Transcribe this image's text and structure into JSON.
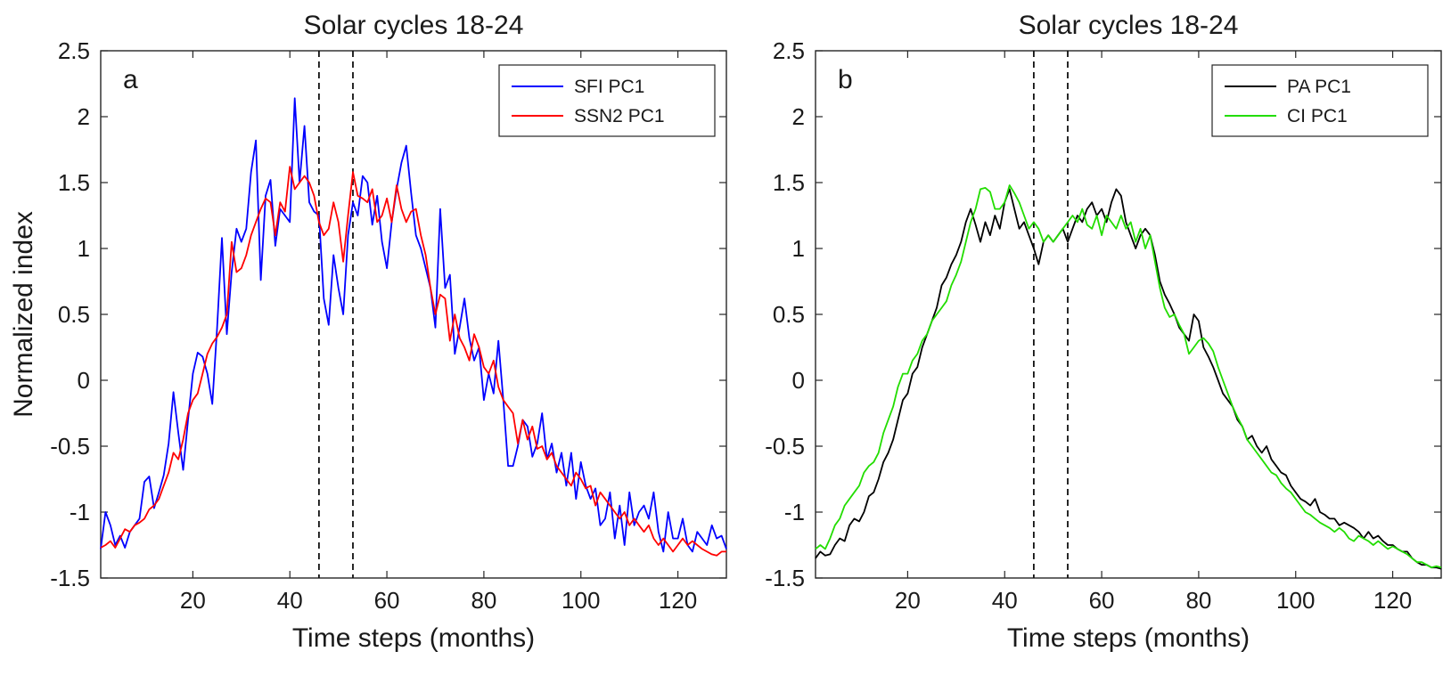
{
  "chart_data": [
    {
      "type": "line",
      "panel_label": "a",
      "title": "Solar cycles 18-24",
      "xlabel": "Time steps (months)",
      "ylabel": "Normalized index",
      "xlim": [
        1,
        130
      ],
      "ylim": [
        -1.5,
        2.5
      ],
      "xticks": [
        "20",
        "40",
        "60",
        "80",
        "100",
        "120"
      ],
      "yticks": [
        "-1.5",
        "-1",
        "-0.5",
        "0",
        "0.5",
        "1",
        "1.5",
        "2",
        "2.5"
      ],
      "vlines": [
        46,
        53
      ],
      "legend_position": "top-right",
      "series": [
        {
          "name": "SFI PC1",
          "color": "#0000ff",
          "x": [
            1,
            2,
            3,
            4,
            5,
            6,
            7,
            8,
            9,
            10,
            11,
            12,
            13,
            14,
            15,
            16,
            17,
            18,
            19,
            20,
            21,
            22,
            23,
            24,
            25,
            26,
            27,
            28,
            29,
            30,
            31,
            32,
            33,
            34,
            35,
            36,
            37,
            38,
            39,
            40,
            41,
            42,
            43,
            44,
            45,
            46,
            47,
            48,
            49,
            50,
            51,
            52,
            53,
            54,
            55,
            56,
            57,
            58,
            59,
            60,
            61,
            62,
            63,
            64,
            65,
            66,
            67,
            68,
            69,
            70,
            71,
            72,
            73,
            74,
            75,
            76,
            77,
            78,
            79,
            80,
            81,
            82,
            83,
            84,
            85,
            86,
            87,
            88,
            89,
            90,
            91,
            92,
            93,
            94,
            95,
            96,
            97,
            98,
            99,
            100,
            101,
            102,
            103,
            104,
            105,
            106,
            107,
            108,
            109,
            110,
            111,
            112,
            113,
            114,
            115,
            116,
            117,
            118,
            119,
            120,
            121,
            122,
            123,
            124,
            125,
            126,
            127,
            128,
            129,
            130
          ],
          "values": [
            -1.28,
            -1.0,
            -1.1,
            -1.25,
            -1.18,
            -1.27,
            -1.15,
            -1.1,
            -1.05,
            -0.77,
            -0.73,
            -0.97,
            -0.85,
            -0.72,
            -0.48,
            -0.09,
            -0.4,
            -0.68,
            -0.3,
            0.05,
            0.21,
            0.18,
            0.05,
            -0.18,
            0.4,
            1.08,
            0.35,
            0.82,
            1.15,
            1.05,
            1.15,
            1.58,
            1.82,
            0.76,
            1.4,
            1.52,
            1.02,
            1.3,
            1.25,
            1.2,
            2.14,
            1.5,
            1.93,
            1.35,
            1.28,
            1.25,
            0.62,
            0.42,
            0.95,
            0.7,
            0.5,
            1.1,
            1.35,
            1.25,
            1.55,
            1.5,
            1.18,
            1.4,
            1.05,
            0.85,
            1.2,
            1.45,
            1.65,
            1.78,
            1.42,
            1.1,
            1.0,
            0.85,
            0.7,
            0.4,
            1.3,
            0.7,
            0.8,
            0.2,
            0.4,
            0.62,
            0.32,
            0.15,
            0.25,
            -0.15,
            0.05,
            -0.1,
            0.3,
            -0.15,
            -0.65,
            -0.65,
            -0.5,
            -0.3,
            -0.35,
            -0.58,
            -0.48,
            -0.25,
            -0.6,
            -0.48,
            -0.7,
            -0.55,
            -0.8,
            -0.55,
            -0.9,
            -0.62,
            -0.8,
            -0.9,
            -0.82,
            -1.1,
            -1.05,
            -0.85,
            -1.2,
            -0.95,
            -1.25,
            -0.85,
            -1.1,
            -1.0,
            -0.95,
            -1.05,
            -0.85,
            -1.15,
            -1.3,
            -1.0,
            -1.2,
            -1.2,
            -1.05,
            -1.25,
            -1.3,
            -1.15,
            -1.2,
            -1.25,
            -1.1,
            -1.2,
            -1.18,
            -1.28
          ]
        },
        {
          "name": "SSN2 PC1",
          "color": "#ff0000",
          "x": [
            1,
            2,
            3,
            4,
            5,
            6,
            7,
            8,
            9,
            10,
            11,
            12,
            13,
            14,
            15,
            16,
            17,
            18,
            19,
            20,
            21,
            22,
            23,
            24,
            25,
            26,
            27,
            28,
            29,
            30,
            31,
            32,
            33,
            34,
            35,
            36,
            37,
            38,
            39,
            40,
            41,
            42,
            43,
            44,
            45,
            46,
            47,
            48,
            49,
            50,
            51,
            52,
            53,
            54,
            55,
            56,
            57,
            58,
            59,
            60,
            61,
            62,
            63,
            64,
            65,
            66,
            67,
            68,
            69,
            70,
            71,
            72,
            73,
            74,
            75,
            76,
            77,
            78,
            79,
            80,
            81,
            82,
            83,
            84,
            85,
            86,
            87,
            88,
            89,
            90,
            91,
            92,
            93,
            94,
            95,
            96,
            97,
            98,
            99,
            100,
            101,
            102,
            103,
            104,
            105,
            106,
            107,
            108,
            109,
            110,
            111,
            112,
            113,
            114,
            115,
            116,
            117,
            118,
            119,
            120,
            121,
            122,
            123,
            124,
            125,
            126,
            127,
            128,
            129,
            130
          ],
          "values": [
            -1.27,
            -1.25,
            -1.22,
            -1.27,
            -1.2,
            -1.13,
            -1.15,
            -1.1,
            -1.08,
            -1.05,
            -0.98,
            -0.95,
            -0.9,
            -0.8,
            -0.7,
            -0.55,
            -0.6,
            -0.45,
            -0.25,
            -0.15,
            -0.1,
            0.05,
            0.2,
            0.28,
            0.33,
            0.4,
            0.5,
            1.05,
            0.82,
            0.85,
            0.95,
            1.1,
            1.2,
            1.3,
            1.38,
            1.35,
            1.1,
            1.35,
            1.28,
            1.62,
            1.45,
            1.5,
            1.55,
            1.5,
            1.4,
            1.2,
            1.1,
            1.15,
            1.35,
            1.2,
            0.9,
            1.25,
            1.58,
            1.4,
            1.38,
            1.35,
            1.45,
            1.2,
            1.25,
            1.38,
            1.2,
            1.48,
            1.3,
            1.2,
            1.28,
            1.3,
            1.1,
            0.95,
            0.7,
            0.5,
            0.65,
            0.62,
            0.3,
            0.5,
            0.32,
            0.25,
            0.15,
            0.35,
            0.25,
            0.1,
            0.05,
            0.15,
            -0.05,
            -0.15,
            -0.2,
            -0.25,
            -0.48,
            -0.3,
            -0.45,
            -0.35,
            -0.52,
            -0.5,
            -0.6,
            -0.55,
            -0.65,
            -0.7,
            -0.75,
            -0.8,
            -0.7,
            -0.75,
            -0.82,
            -0.8,
            -0.95,
            -0.85,
            -0.9,
            -0.95,
            -1.0,
            -1.05,
            -1.0,
            -1.1,
            -1.05,
            -1.1,
            -1.15,
            -1.1,
            -1.2,
            -1.25,
            -1.2,
            -1.25,
            -1.3,
            -1.25,
            -1.2,
            -1.25,
            -1.22,
            -1.25,
            -1.28,
            -1.3,
            -1.32,
            -1.33,
            -1.3,
            -1.3
          ]
        }
      ]
    },
    {
      "type": "line",
      "panel_label": "b",
      "title": "Solar cycles 18-24",
      "xlabel": "Time steps (months)",
      "ylabel": "",
      "xlim": [
        1,
        130
      ],
      "ylim": [
        -1.5,
        2.5
      ],
      "xticks": [
        "20",
        "40",
        "60",
        "80",
        "100",
        "120"
      ],
      "yticks": [
        "-1.5",
        "-1",
        "-0.5",
        "0",
        "0.5",
        "1",
        "1.5",
        "2",
        "2.5"
      ],
      "vlines": [
        46,
        53
      ],
      "legend_position": "top-right",
      "series": [
        {
          "name": "PA PC1",
          "color": "#000000",
          "x": [
            1,
            2,
            3,
            4,
            5,
            6,
            7,
            8,
            9,
            10,
            11,
            12,
            13,
            14,
            15,
            16,
            17,
            18,
            19,
            20,
            21,
            22,
            23,
            24,
            25,
            26,
            27,
            28,
            29,
            30,
            31,
            32,
            33,
            34,
            35,
            36,
            37,
            38,
            39,
            40,
            41,
            42,
            43,
            44,
            45,
            46,
            47,
            48,
            49,
            50,
            51,
            52,
            53,
            54,
            55,
            56,
            57,
            58,
            59,
            60,
            61,
            62,
            63,
            64,
            65,
            66,
            67,
            68,
            69,
            70,
            71,
            72,
            73,
            74,
            75,
            76,
            77,
            78,
            79,
            80,
            81,
            82,
            83,
            84,
            85,
            86,
            87,
            88,
            89,
            90,
            91,
            92,
            93,
            94,
            95,
            96,
            97,
            98,
            99,
            100,
            101,
            102,
            103,
            104,
            105,
            106,
            107,
            108,
            109,
            110,
            111,
            112,
            113,
            114,
            115,
            116,
            117,
            118,
            119,
            120,
            121,
            122,
            123,
            124,
            125,
            126,
            127,
            128,
            129,
            130
          ],
          "values": [
            -1.35,
            -1.3,
            -1.33,
            -1.32,
            -1.25,
            -1.2,
            -1.22,
            -1.1,
            -1.05,
            -1.07,
            -1.0,
            -0.88,
            -0.85,
            -0.75,
            -0.62,
            -0.55,
            -0.45,
            -0.3,
            -0.15,
            -0.1,
            0.05,
            0.1,
            0.25,
            0.35,
            0.45,
            0.55,
            0.72,
            0.78,
            0.88,
            0.95,
            1.05,
            1.2,
            1.3,
            1.18,
            1.05,
            1.2,
            1.1,
            1.25,
            1.15,
            1.35,
            1.45,
            1.3,
            1.15,
            1.2,
            1.1,
            1.0,
            0.88,
            1.05,
            1.1,
            1.05,
            1.1,
            1.15,
            1.05,
            1.15,
            1.25,
            1.2,
            1.3,
            1.35,
            1.25,
            1.3,
            1.2,
            1.35,
            1.45,
            1.4,
            1.2,
            1.1,
            1.0,
            1.1,
            1.15,
            1.1,
            0.95,
            0.75,
            0.65,
            0.58,
            0.5,
            0.4,
            0.35,
            0.3,
            0.5,
            0.45,
            0.25,
            0.18,
            0.1,
            0.0,
            -0.1,
            -0.15,
            -0.2,
            -0.3,
            -0.35,
            -0.45,
            -0.42,
            -0.5,
            -0.55,
            -0.5,
            -0.6,
            -0.65,
            -0.7,
            -0.72,
            -0.8,
            -0.85,
            -0.9,
            -0.92,
            -0.95,
            -0.9,
            -1.0,
            -1.02,
            -1.05,
            -1.05,
            -1.1,
            -1.08,
            -1.1,
            -1.12,
            -1.15,
            -1.2,
            -1.15,
            -1.2,
            -1.18,
            -1.22,
            -1.25,
            -1.25,
            -1.28,
            -1.3,
            -1.3,
            -1.35,
            -1.38,
            -1.4,
            -1.4,
            -1.42,
            -1.42,
            -1.43
          ]
        },
        {
          "name": "CI PC1",
          "color": "#22dd00",
          "x": [
            1,
            2,
            3,
            4,
            5,
            6,
            7,
            8,
            9,
            10,
            11,
            12,
            13,
            14,
            15,
            16,
            17,
            18,
            19,
            20,
            21,
            22,
            23,
            24,
            25,
            26,
            27,
            28,
            29,
            30,
            31,
            32,
            33,
            34,
            35,
            36,
            37,
            38,
            39,
            40,
            41,
            42,
            43,
            44,
            45,
            46,
            47,
            48,
            49,
            50,
            51,
            52,
            53,
            54,
            55,
            56,
            57,
            58,
            59,
            60,
            61,
            62,
            63,
            64,
            65,
            66,
            67,
            68,
            69,
            70,
            71,
            72,
            73,
            74,
            75,
            76,
            77,
            78,
            79,
            80,
            81,
            82,
            83,
            84,
            85,
            86,
            87,
            88,
            89,
            90,
            91,
            92,
            93,
            94,
            95,
            96,
            97,
            98,
            99,
            100,
            101,
            102,
            103,
            104,
            105,
            106,
            107,
            108,
            109,
            110,
            111,
            112,
            113,
            114,
            115,
            116,
            117,
            118,
            119,
            120,
            121,
            122,
            123,
            124,
            125,
            126,
            127,
            128,
            129,
            130
          ],
          "values": [
            -1.28,
            -1.25,
            -1.28,
            -1.2,
            -1.1,
            -1.05,
            -0.95,
            -0.9,
            -0.85,
            -0.8,
            -0.7,
            -0.65,
            -0.62,
            -0.55,
            -0.4,
            -0.3,
            -0.2,
            -0.05,
            0.05,
            0.05,
            0.15,
            0.2,
            0.3,
            0.35,
            0.45,
            0.5,
            0.55,
            0.6,
            0.72,
            0.8,
            0.9,
            1.05,
            1.2,
            1.3,
            1.45,
            1.46,
            1.43,
            1.3,
            1.3,
            1.35,
            1.48,
            1.42,
            1.35,
            1.25,
            1.15,
            1.2,
            1.15,
            1.05,
            1.1,
            1.05,
            1.1,
            1.15,
            1.2,
            1.25,
            1.2,
            1.3,
            1.18,
            1.15,
            1.25,
            1.1,
            1.25,
            1.2,
            1.15,
            1.25,
            1.15,
            1.2,
            1.05,
            1.15,
            1.0,
            1.1,
            0.9,
            0.7,
            0.55,
            0.48,
            0.5,
            0.42,
            0.35,
            0.2,
            0.25,
            0.3,
            0.32,
            0.28,
            0.22,
            0.1,
            0.0,
            -0.1,
            -0.2,
            -0.28,
            -0.35,
            -0.45,
            -0.5,
            -0.55,
            -0.6,
            -0.65,
            -0.7,
            -0.72,
            -0.78,
            -0.82,
            -0.85,
            -0.9,
            -0.95,
            -1.0,
            -1.02,
            -1.05,
            -1.08,
            -1.1,
            -1.12,
            -1.15,
            -1.12,
            -1.15,
            -1.2,
            -1.22,
            -1.18,
            -1.2,
            -1.22,
            -1.25,
            -1.22,
            -1.25,
            -1.28,
            -1.26,
            -1.28,
            -1.3,
            -1.32,
            -1.35,
            -1.38,
            -1.38,
            -1.4,
            -1.42,
            -1.41,
            -1.42
          ]
        }
      ]
    }
  ]
}
